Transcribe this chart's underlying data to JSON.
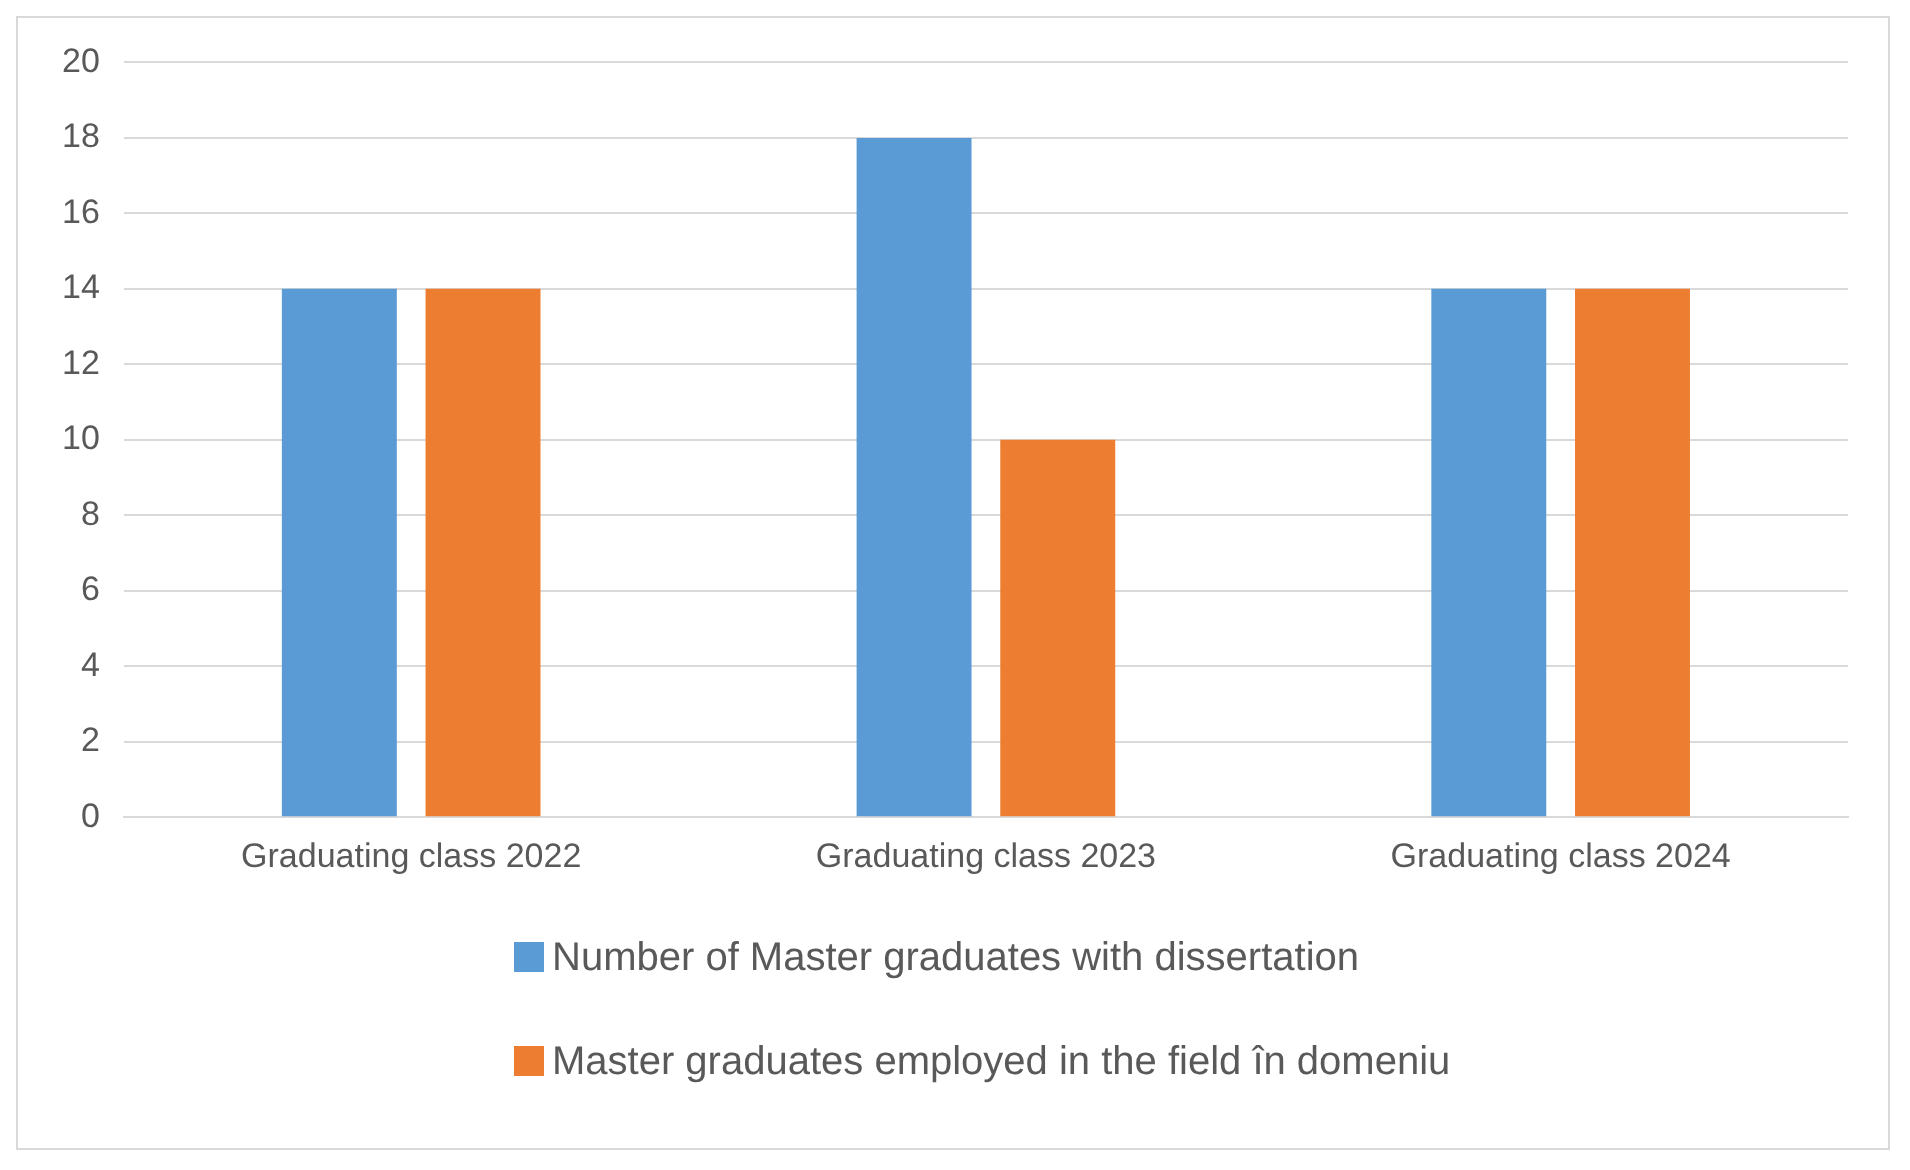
{
  "chart_data": {
    "type": "bar",
    "categories": [
      "Graduating class 2022",
      "Graduating class 2023",
      "Graduating class 2024"
    ],
    "series": [
      {
        "name": "Number of Master graduates with dissertation",
        "color": "#5b9bd5",
        "values": [
          14,
          18,
          14
        ]
      },
      {
        "name": "Master graduates employed in the field în domeniu",
        "color": "#ed7d31",
        "values": [
          14,
          10,
          14
        ]
      }
    ],
    "ylim": [
      0,
      20
    ],
    "yticks": [
      0,
      2,
      4,
      6,
      8,
      10,
      12,
      14,
      16,
      18,
      20
    ],
    "grid": "y",
    "legend": "bottom"
  }
}
